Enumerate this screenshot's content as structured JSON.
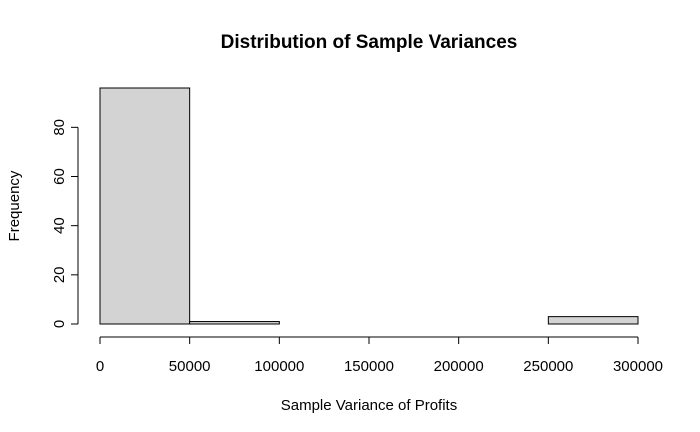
{
  "chart_data": {
    "type": "bar",
    "subtype": "histogram",
    "title": "Distribution of Sample Variances",
    "xlabel": "Sample Variance of Profits",
    "ylabel": "Frequency",
    "bins": [
      {
        "start": 0,
        "end": 50000,
        "count": 96
      },
      {
        "start": 50000,
        "end": 100000,
        "count": 1
      },
      {
        "start": 100000,
        "end": 150000,
        "count": 0
      },
      {
        "start": 150000,
        "end": 200000,
        "count": 0
      },
      {
        "start": 200000,
        "end": 250000,
        "count": 0
      },
      {
        "start": 250000,
        "end": 300000,
        "count": 3
      }
    ],
    "xlim": [
      0,
      300000
    ],
    "ylim": [
      0,
      96
    ],
    "x_ticks": [
      0,
      50000,
      100000,
      150000,
      200000,
      250000,
      300000
    ],
    "x_tick_labels": [
      "0",
      "50000",
      "100000",
      "150000",
      "200000",
      "250000",
      "300000"
    ],
    "y_ticks": [
      0,
      20,
      40,
      60,
      80
    ],
    "y_tick_labels": [
      "0",
      "20",
      "40",
      "60",
      "80"
    ],
    "grid": false,
    "legend": "none",
    "colors": {
      "bar_fill": "#d3d3d3",
      "bar_stroke": "#000000",
      "axis": "#000000",
      "background": "#ffffff"
    }
  }
}
